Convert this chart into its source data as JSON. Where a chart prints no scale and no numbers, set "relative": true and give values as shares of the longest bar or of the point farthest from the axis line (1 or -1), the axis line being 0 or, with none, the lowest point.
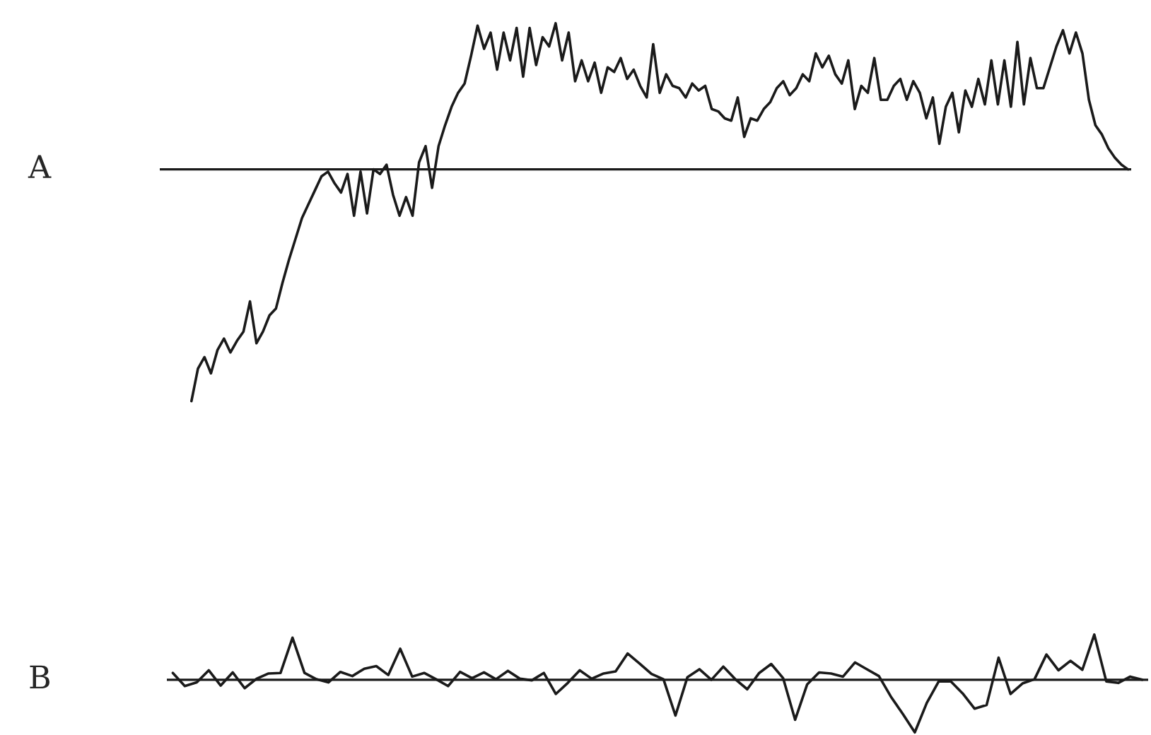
{
  "chart_data": [
    {
      "type": "line",
      "title": "A",
      "relative": true,
      "categories": [
        null,
        null,
        null,
        null,
        null,
        null,
        null,
        null,
        null,
        null,
        null,
        null,
        null,
        null,
        null,
        null,
        null,
        null,
        null,
        null,
        null,
        null,
        null,
        null,
        null,
        null,
        null,
        null,
        null,
        null,
        null,
        null,
        null,
        null,
        null,
        null,
        null,
        null,
        null,
        null,
        null,
        null,
        null,
        null,
        null,
        null,
        null,
        null,
        null,
        null,
        null,
        null,
        null,
        null,
        null,
        null,
        null,
        null,
        null,
        null,
        null,
        null,
        null,
        null,
        null,
        null,
        null,
        null,
        null,
        null,
        null,
        null,
        null,
        null,
        null,
        null,
        null,
        null,
        null,
        null,
        null,
        null,
        null,
        null,
        null,
        null,
        null,
        null,
        null,
        null,
        null,
        null,
        null,
        null,
        null,
        null,
        null,
        null,
        null,
        null,
        null,
        null,
        null,
        null,
        null,
        null,
        null,
        null,
        null,
        null,
        null,
        null,
        null,
        null,
        null,
        null,
        null,
        null,
        null,
        null,
        null,
        null,
        null,
        null,
        null,
        null,
        null,
        null,
        null,
        null,
        null,
        null,
        null,
        null,
        null,
        null,
        null,
        null,
        null,
        null,
        null,
        null,
        null,
        null,
        null
      ],
      "series": [
        {
          "color": "#1a1a1a",
          "values": [
            -1.0,
            -0.86,
            -0.81,
            -0.88,
            -0.78,
            -0.73,
            -0.79,
            -0.74,
            -0.7,
            -0.57,
            -0.75,
            -0.7,
            -0.63,
            -0.6,
            -0.49,
            -0.39,
            -0.3,
            -0.21,
            -0.15,
            -0.09,
            -0.03,
            -0.01,
            -0.06,
            -0.1,
            -0.02,
            -0.2,
            -0.01,
            -0.19,
            0.0,
            -0.02,
            0.02,
            -0.11,
            -0.2,
            -0.12,
            -0.2,
            0.03,
            0.1,
            -0.08,
            0.1,
            0.19,
            0.27,
            0.33,
            0.37,
            0.49,
            0.62,
            0.52,
            0.59,
            0.43,
            0.59,
            0.47,
            0.61,
            0.4,
            0.61,
            0.45,
            0.57,
            0.53,
            0.63,
            0.47,
            0.59,
            0.38,
            0.47,
            0.38,
            0.46,
            0.33,
            0.44,
            0.42,
            0.48,
            0.39,
            0.43,
            0.36,
            0.31,
            0.54,
            0.33,
            0.41,
            0.36,
            0.35,
            0.31,
            0.37,
            0.34,
            0.36,
            0.26,
            0.25,
            0.22,
            0.21,
            0.31,
            0.14,
            0.22,
            0.21,
            0.26,
            0.29,
            0.35,
            0.38,
            0.32,
            0.35,
            0.41,
            0.38,
            0.5,
            0.44,
            0.49,
            0.41,
            0.37,
            0.47,
            0.26,
            0.36,
            0.33,
            0.48,
            0.3,
            0.3,
            0.36,
            0.39,
            0.3,
            0.38,
            0.33,
            0.22,
            0.31,
            0.11,
            0.27,
            0.33,
            0.16,
            0.34,
            0.27,
            0.39,
            0.28,
            0.47,
            0.28,
            0.47,
            0.27,
            0.55,
            0.28,
            0.48,
            0.35,
            0.35,
            0.44,
            0.53,
            0.6,
            0.5,
            0.59,
            0.5,
            0.3,
            0.19,
            0.15,
            0.09,
            0.05,
            0.02,
            0.0
          ]
        }
      ]
    },
    {
      "type": "line",
      "title": "B",
      "relative": true,
      "categories": [
        null,
        null,
        null,
        null,
        null,
        null,
        null,
        null,
        null,
        null,
        null,
        null,
        null,
        null,
        null,
        null,
        null,
        null,
        null,
        null,
        null,
        null,
        null,
        null,
        null,
        null,
        null,
        null,
        null,
        null,
        null,
        null,
        null,
        null,
        null,
        null,
        null,
        null,
        null,
        null,
        null,
        null,
        null,
        null,
        null,
        null,
        null,
        null,
        null,
        null,
        null,
        null,
        null,
        null,
        null,
        null,
        null,
        null,
        null,
        null,
        null,
        null,
        null,
        null,
        null,
        null,
        null,
        null,
        null,
        null,
        null,
        null,
        null,
        null,
        null,
        null,
        null,
        null,
        null,
        null,
        null,
        null
      ],
      "series": [
        {
          "color": "#1a1a1a",
          "values": [
            0.13,
            -0.12,
            -0.05,
            0.18,
            -0.11,
            0.14,
            -0.16,
            0.02,
            0.12,
            0.13,
            0.8,
            0.13,
            0.01,
            -0.05,
            0.15,
            0.07,
            0.21,
            0.26,
            0.09,
            0.59,
            0.06,
            0.13,
            0.01,
            -0.12,
            0.15,
            0.03,
            0.14,
            0.01,
            0.17,
            0.02,
            -0.01,
            0.13,
            -0.27,
            -0.06,
            0.18,
            0.02,
            0.12,
            0.16,
            0.5,
            0.31,
            0.11,
            0.01,
            -0.68,
            0.05,
            0.2,
            0.0,
            0.25,
            0.01,
            -0.18,
            0.13,
            0.3,
            0.03,
            -0.76,
            -0.09,
            0.14,
            0.12,
            0.06,
            0.33,
            0.2,
            0.07,
            -0.32,
            -0.65,
            -1.0,
            -0.44,
            -0.03,
            -0.03,
            -0.26,
            -0.55,
            -0.48,
            0.42,
            -0.27,
            -0.07,
            0.01,
            0.48,
            0.18,
            0.36,
            0.19,
            0.86,
            -0.03,
            -0.06,
            0.06,
            0.0
          ]
        }
      ]
    }
  ]
}
